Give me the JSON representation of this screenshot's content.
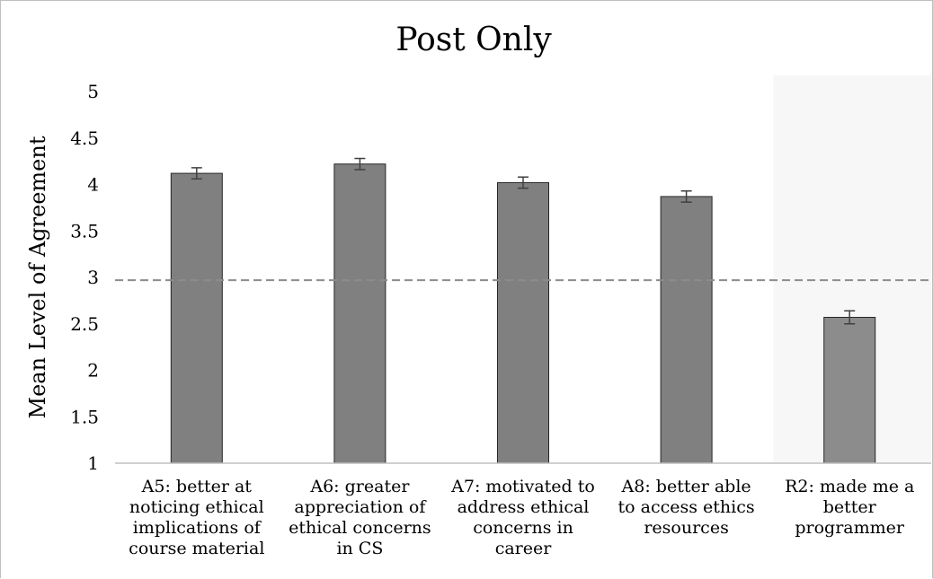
{
  "chart_data": {
    "type": "bar",
    "title": "Post Only",
    "ylabel": "Mean Level of Agreement",
    "xlabel": "",
    "ylim": [
      1,
      5
    ],
    "yticks": [
      1,
      1.5,
      2,
      2.5,
      3,
      3.5,
      4,
      4.5,
      5
    ],
    "ytick_labels": [
      "1",
      "1.5",
      "2",
      "2.5",
      "3",
      "3.5",
      "4",
      "4.5",
      "5"
    ],
    "categories": [
      [
        "A5: better at",
        "noticing ethical",
        "implications of",
        "course material"
      ],
      [
        "A6: greater",
        "appreciation of",
        "ethical concerns",
        "in CS"
      ],
      [
        "A7: motivated to",
        "address ethical",
        "concerns in",
        "career"
      ],
      [
        "A8: better able",
        "to access ethics",
        "resources"
      ],
      [
        "R2: made me a",
        "better",
        "programmer"
      ]
    ],
    "values": [
      4.12,
      4.22,
      4.02,
      3.87,
      2.57
    ],
    "errors": [
      0.06,
      0.06,
      0.06,
      0.06,
      0.07
    ],
    "reference_line": 2.97,
    "highlighted_category_index": 4,
    "colors": {
      "bar": "#808080",
      "bar_highlight": "#8c8c8c",
      "bar_edge": "#262626",
      "highlight_bg": "#f7f7f7",
      "reference": "#8c8c8c",
      "error": "#404040"
    },
    "grid": false,
    "legend": "none"
  }
}
